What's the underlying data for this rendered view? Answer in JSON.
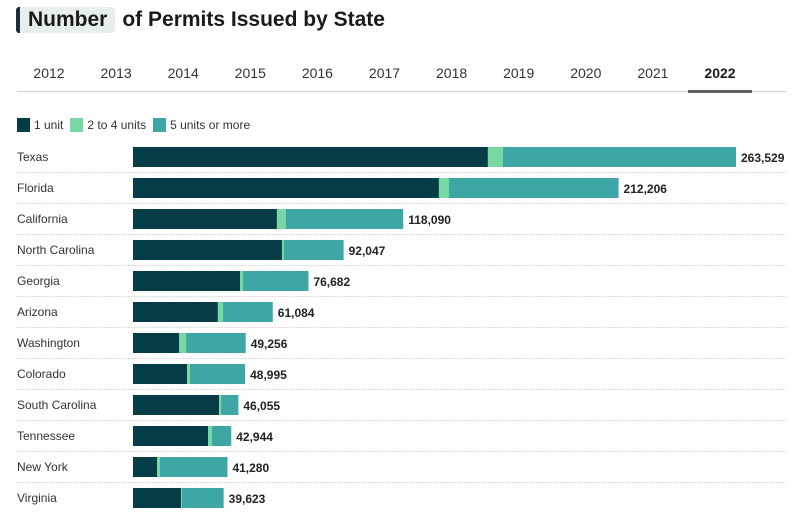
{
  "title": {
    "highlight": "Number",
    "rest": "of Permits Issued by State"
  },
  "tabs": {
    "items": [
      "2012",
      "2013",
      "2014",
      "2015",
      "2016",
      "2017",
      "2018",
      "2019",
      "2020",
      "2021",
      "2022"
    ],
    "active": "2022"
  },
  "colors": {
    "one_unit": "#053c47",
    "two_to_four": "#77d8a4",
    "five_plus": "#3fa6a6"
  },
  "chart_data": {
    "type": "bar",
    "orientation": "horizontal",
    "stacked": true,
    "title": "Number of Permits Issued by State",
    "year": "2022",
    "xlabel": "",
    "ylabel": "",
    "legend_position": "top-left",
    "grid": false,
    "xlim": [
      0,
      263529
    ],
    "categories": [
      "Texas",
      "Florida",
      "California",
      "North Carolina",
      "Georgia",
      "Arizona",
      "Washington",
      "Colorado",
      "South Carolina",
      "Tennessee",
      "New York",
      "Virginia"
    ],
    "series": [
      {
        "name": "1 unit",
        "color": "#053c47",
        "values": [
          155100,
          133700,
          62900,
          65100,
          46800,
          37100,
          20100,
          23600,
          37600,
          32800,
          10500,
          21000
        ]
      },
      {
        "name": "2 to 4 units",
        "color": "#77d8a4",
        "values": [
          6600,
          4400,
          3900,
          900,
          1300,
          2200,
          3100,
          1300,
          900,
          1700,
          1300,
          400
        ]
      },
      {
        "name": "5 units or more",
        "color": "#3fa6a6",
        "values": [
          101829,
          74106,
          51290,
          26047,
          28582,
          21784,
          26056,
          24095,
          7555,
          8444,
          29480,
          18223
        ]
      }
    ],
    "totals": [
      263529,
      212206,
      118090,
      92047,
      76682,
      61084,
      49256,
      48995,
      46055,
      42944,
      41280,
      39623
    ],
    "total_labels": [
      "263,529",
      "212,206",
      "118,090",
      "92,047",
      "76,682",
      "61,084",
      "49,256",
      "48,995",
      "46,055",
      "42,944",
      "41,280",
      "39,623"
    ]
  }
}
